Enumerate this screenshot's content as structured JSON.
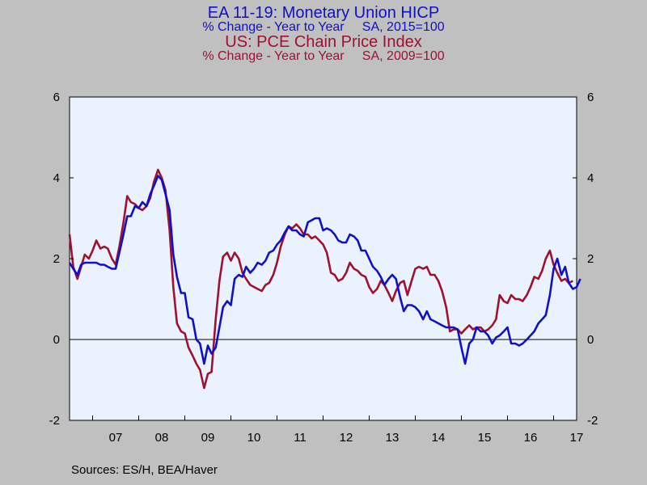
{
  "chart_data": {
    "type": "line",
    "titles": [
      {
        "text": "EA 11-19: Monetary Union HICP",
        "color": "#1010c8",
        "size": "large"
      },
      {
        "text": "% Change - Year to Year     SA, 2015=100",
        "color": "#1010c8",
        "size": "small"
      },
      {
        "text": "US: PCE Chain Price Index",
        "color": "#a01030",
        "size": "large"
      },
      {
        "text": "% Change - Year to Year     SA, 2009=100",
        "color": "#a01030",
        "size": "small"
      }
    ],
    "ylim": [
      -2,
      6
    ],
    "yticks": [
      -2,
      0,
      2,
      4,
      6
    ],
    "xlim": [
      2006.5,
      2017.5
    ],
    "xtick_labels": [
      {
        "label": "07",
        "year": 2007
      },
      {
        "label": "08",
        "year": 2008
      },
      {
        "label": "09",
        "year": 2009
      },
      {
        "label": "10",
        "year": 2010
      },
      {
        "label": "11",
        "year": 2011
      },
      {
        "label": "12",
        "year": 2012
      },
      {
        "label": "13",
        "year": 2013
      },
      {
        "label": "14",
        "year": 2014
      },
      {
        "label": "15",
        "year": 2015
      },
      {
        "label": "16",
        "year": 2016
      },
      {
        "label": "17",
        "year": 2017
      }
    ],
    "zero_line": true,
    "plot_background": "#eaf3fd",
    "series": [
      {
        "color": "#a01030",
        "points": [
          [
            2006.5,
            2.6
          ],
          [
            2006.58,
            1.8
          ],
          [
            2006.67,
            1.5
          ],
          [
            2006.75,
            1.8
          ],
          [
            2006.83,
            2.1
          ],
          [
            2006.92,
            2.0
          ],
          [
            2007.0,
            2.2
          ],
          [
            2007.08,
            2.45
          ],
          [
            2007.17,
            2.25
          ],
          [
            2007.25,
            2.3
          ],
          [
            2007.33,
            2.25
          ],
          [
            2007.42,
            2.0
          ],
          [
            2007.5,
            1.85
          ],
          [
            2007.58,
            2.3
          ],
          [
            2007.67,
            2.9
          ],
          [
            2007.75,
            3.55
          ],
          [
            2007.83,
            3.4
          ],
          [
            2007.92,
            3.35
          ],
          [
            2008.0,
            3.25
          ],
          [
            2008.08,
            3.2
          ],
          [
            2008.17,
            3.3
          ],
          [
            2008.25,
            3.5
          ],
          [
            2008.33,
            3.9
          ],
          [
            2008.42,
            4.2
          ],
          [
            2008.5,
            4.0
          ],
          [
            2008.58,
            3.7
          ],
          [
            2008.67,
            2.7
          ],
          [
            2008.75,
            1.3
          ],
          [
            2008.83,
            0.4
          ],
          [
            2008.92,
            0.2
          ],
          [
            2009.0,
            0.15
          ],
          [
            2009.08,
            -0.2
          ],
          [
            2009.17,
            -0.4
          ],
          [
            2009.25,
            -0.6
          ],
          [
            2009.33,
            -0.75
          ],
          [
            2009.42,
            -1.2
          ],
          [
            2009.5,
            -0.85
          ],
          [
            2009.58,
            -0.8
          ],
          [
            2009.67,
            0.5
          ],
          [
            2009.75,
            1.45
          ],
          [
            2009.83,
            2.05
          ],
          [
            2009.92,
            2.15
          ],
          [
            2010.0,
            1.95
          ],
          [
            2010.08,
            2.15
          ],
          [
            2010.17,
            2.0
          ],
          [
            2010.25,
            1.65
          ],
          [
            2010.33,
            1.5
          ],
          [
            2010.42,
            1.35
          ],
          [
            2010.5,
            1.3
          ],
          [
            2010.58,
            1.25
          ],
          [
            2010.67,
            1.2
          ],
          [
            2010.75,
            1.35
          ],
          [
            2010.83,
            1.4
          ],
          [
            2010.92,
            1.6
          ],
          [
            2011.0,
            1.9
          ],
          [
            2011.08,
            2.3
          ],
          [
            2011.17,
            2.6
          ],
          [
            2011.25,
            2.8
          ],
          [
            2011.33,
            2.75
          ],
          [
            2011.42,
            2.85
          ],
          [
            2011.5,
            2.75
          ],
          [
            2011.58,
            2.6
          ],
          [
            2011.67,
            2.6
          ],
          [
            2011.75,
            2.5
          ],
          [
            2011.83,
            2.55
          ],
          [
            2011.92,
            2.45
          ],
          [
            2012.0,
            2.35
          ],
          [
            2012.08,
            2.15
          ],
          [
            2012.17,
            1.65
          ],
          [
            2012.25,
            1.6
          ],
          [
            2012.33,
            1.45
          ],
          [
            2012.42,
            1.5
          ],
          [
            2012.5,
            1.65
          ],
          [
            2012.58,
            1.9
          ],
          [
            2012.67,
            1.75
          ],
          [
            2012.75,
            1.7
          ],
          [
            2012.83,
            1.6
          ],
          [
            2012.92,
            1.55
          ],
          [
            2013.0,
            1.3
          ],
          [
            2013.08,
            1.15
          ],
          [
            2013.17,
            1.25
          ],
          [
            2013.25,
            1.45
          ],
          [
            2013.33,
            1.35
          ],
          [
            2013.42,
            1.15
          ],
          [
            2013.5,
            0.95
          ],
          [
            2013.58,
            1.2
          ],
          [
            2013.67,
            1.4
          ],
          [
            2013.75,
            1.45
          ],
          [
            2013.83,
            1.1
          ],
          [
            2013.92,
            1.45
          ],
          [
            2014.0,
            1.75
          ],
          [
            2014.08,
            1.8
          ],
          [
            2014.17,
            1.75
          ],
          [
            2014.25,
            1.8
          ],
          [
            2014.33,
            1.6
          ],
          [
            2014.42,
            1.6
          ],
          [
            2014.5,
            1.45
          ],
          [
            2014.58,
            1.2
          ],
          [
            2014.67,
            0.8
          ],
          [
            2014.75,
            0.2
          ],
          [
            2014.83,
            0.25
          ],
          [
            2014.92,
            0.25
          ],
          [
            2015.0,
            0.15
          ],
          [
            2015.08,
            0.25
          ],
          [
            2015.17,
            0.35
          ],
          [
            2015.25,
            0.25
          ],
          [
            2015.33,
            0.3
          ],
          [
            2015.42,
            0.3
          ],
          [
            2015.5,
            0.2
          ],
          [
            2015.58,
            0.25
          ],
          [
            2015.67,
            0.35
          ],
          [
            2015.75,
            0.5
          ],
          [
            2015.83,
            1.1
          ],
          [
            2015.92,
            0.95
          ],
          [
            2016.0,
            0.9
          ],
          [
            2016.08,
            1.1
          ],
          [
            2016.17,
            1.0
          ],
          [
            2016.25,
            1.0
          ],
          [
            2016.33,
            0.95
          ],
          [
            2016.42,
            1.1
          ],
          [
            2016.5,
            1.3
          ],
          [
            2016.58,
            1.55
          ],
          [
            2016.67,
            1.5
          ],
          [
            2016.75,
            1.7
          ],
          [
            2016.83,
            2.0
          ],
          [
            2016.92,
            2.2
          ],
          [
            2017.0,
            1.85
          ],
          [
            2017.08,
            1.65
          ],
          [
            2017.17,
            1.45
          ],
          [
            2017.25,
            1.5
          ],
          [
            2017.33,
            1.4
          ],
          [
            2017.42,
            1.45
          ]
        ]
      },
      {
        "color": "#1010c8",
        "points": [
          [
            2006.5,
            1.9
          ],
          [
            2006.58,
            1.75
          ],
          [
            2006.67,
            1.6
          ],
          [
            2006.75,
            1.85
          ],
          [
            2006.83,
            1.9
          ],
          [
            2006.92,
            1.9
          ],
          [
            2007.0,
            1.9
          ],
          [
            2007.08,
            1.9
          ],
          [
            2007.17,
            1.85
          ],
          [
            2007.25,
            1.85
          ],
          [
            2007.33,
            1.8
          ],
          [
            2007.42,
            1.75
          ],
          [
            2007.5,
            1.75
          ],
          [
            2007.58,
            2.15
          ],
          [
            2007.67,
            2.6
          ],
          [
            2007.75,
            3.05
          ],
          [
            2007.83,
            3.05
          ],
          [
            2007.92,
            3.3
          ],
          [
            2008.0,
            3.25
          ],
          [
            2008.08,
            3.4
          ],
          [
            2008.17,
            3.3
          ],
          [
            2008.25,
            3.6
          ],
          [
            2008.33,
            3.8
          ],
          [
            2008.42,
            4.05
          ],
          [
            2008.5,
            3.95
          ],
          [
            2008.58,
            3.6
          ],
          [
            2008.67,
            3.2
          ],
          [
            2008.75,
            2.1
          ],
          [
            2008.83,
            1.55
          ],
          [
            2008.92,
            1.15
          ],
          [
            2009.0,
            1.15
          ],
          [
            2009.08,
            0.55
          ],
          [
            2009.17,
            0.5
          ],
          [
            2009.25,
            0.0
          ],
          [
            2009.33,
            -0.1
          ],
          [
            2009.42,
            -0.6
          ],
          [
            2009.5,
            -0.15
          ],
          [
            2009.58,
            -0.35
          ],
          [
            2009.67,
            -0.2
          ],
          [
            2009.75,
            0.3
          ],
          [
            2009.83,
            0.8
          ],
          [
            2009.92,
            0.95
          ],
          [
            2010.0,
            0.85
          ],
          [
            2010.08,
            1.5
          ],
          [
            2010.17,
            1.6
          ],
          [
            2010.25,
            1.55
          ],
          [
            2010.33,
            1.8
          ],
          [
            2010.42,
            1.65
          ],
          [
            2010.5,
            1.75
          ],
          [
            2010.58,
            1.9
          ],
          [
            2010.67,
            1.85
          ],
          [
            2010.75,
            1.95
          ],
          [
            2010.83,
            2.15
          ],
          [
            2010.92,
            2.2
          ],
          [
            2011.0,
            2.35
          ],
          [
            2011.08,
            2.45
          ],
          [
            2011.17,
            2.65
          ],
          [
            2011.25,
            2.8
          ],
          [
            2011.33,
            2.7
          ],
          [
            2011.42,
            2.7
          ],
          [
            2011.5,
            2.6
          ],
          [
            2011.58,
            2.55
          ],
          [
            2011.67,
            2.9
          ],
          [
            2011.75,
            2.95
          ],
          [
            2011.83,
            3.0
          ],
          [
            2011.92,
            3.0
          ],
          [
            2012.0,
            2.7
          ],
          [
            2012.08,
            2.75
          ],
          [
            2012.17,
            2.7
          ],
          [
            2012.25,
            2.6
          ],
          [
            2012.33,
            2.45
          ],
          [
            2012.42,
            2.4
          ],
          [
            2012.5,
            2.4
          ],
          [
            2012.58,
            2.6
          ],
          [
            2012.67,
            2.55
          ],
          [
            2012.75,
            2.45
          ],
          [
            2012.83,
            2.2
          ],
          [
            2012.92,
            2.2
          ],
          [
            2013.0,
            2.0
          ],
          [
            2013.08,
            1.8
          ],
          [
            2013.17,
            1.7
          ],
          [
            2013.25,
            1.55
          ],
          [
            2013.33,
            1.35
          ],
          [
            2013.42,
            1.5
          ],
          [
            2013.5,
            1.6
          ],
          [
            2013.58,
            1.5
          ],
          [
            2013.67,
            1.05
          ],
          [
            2013.75,
            0.7
          ],
          [
            2013.83,
            0.85
          ],
          [
            2013.92,
            0.85
          ],
          [
            2014.0,
            0.8
          ],
          [
            2014.08,
            0.7
          ],
          [
            2014.17,
            0.5
          ],
          [
            2014.25,
            0.7
          ],
          [
            2014.33,
            0.5
          ],
          [
            2014.42,
            0.45
          ],
          [
            2014.5,
            0.4
          ],
          [
            2014.58,
            0.35
          ],
          [
            2014.67,
            0.3
          ],
          [
            2014.75,
            0.3
          ],
          [
            2014.83,
            0.3
          ],
          [
            2014.92,
            0.25
          ],
          [
            2015.0,
            -0.2
          ],
          [
            2015.08,
            -0.6
          ],
          [
            2015.17,
            -0.1
          ],
          [
            2015.25,
            0.0
          ],
          [
            2015.33,
            0.3
          ],
          [
            2015.42,
            0.2
          ],
          [
            2015.5,
            0.2
          ],
          [
            2015.58,
            0.1
          ],
          [
            2015.67,
            -0.1
          ],
          [
            2015.75,
            0.05
          ],
          [
            2015.83,
            0.1
          ],
          [
            2015.92,
            0.2
          ],
          [
            2016.0,
            0.3
          ],
          [
            2016.08,
            -0.1
          ],
          [
            2016.17,
            -0.1
          ],
          [
            2016.25,
            -0.15
          ],
          [
            2016.33,
            -0.1
          ],
          [
            2016.42,
            0.0
          ],
          [
            2016.5,
            0.1
          ],
          [
            2016.58,
            0.2
          ],
          [
            2016.67,
            0.4
          ],
          [
            2016.75,
            0.5
          ],
          [
            2016.83,
            0.6
          ],
          [
            2016.92,
            1.1
          ],
          [
            2017.0,
            1.75
          ],
          [
            2017.08,
            2.0
          ],
          [
            2017.17,
            1.6
          ],
          [
            2017.25,
            1.8
          ],
          [
            2017.33,
            1.4
          ],
          [
            2017.42,
            1.25
          ],
          [
            2017.5,
            1.3
          ],
          [
            2017.58,
            1.5
          ]
        ]
      }
    ]
  },
  "footer": {
    "sources": "Sources:  ES/H, BEA/Haver"
  }
}
